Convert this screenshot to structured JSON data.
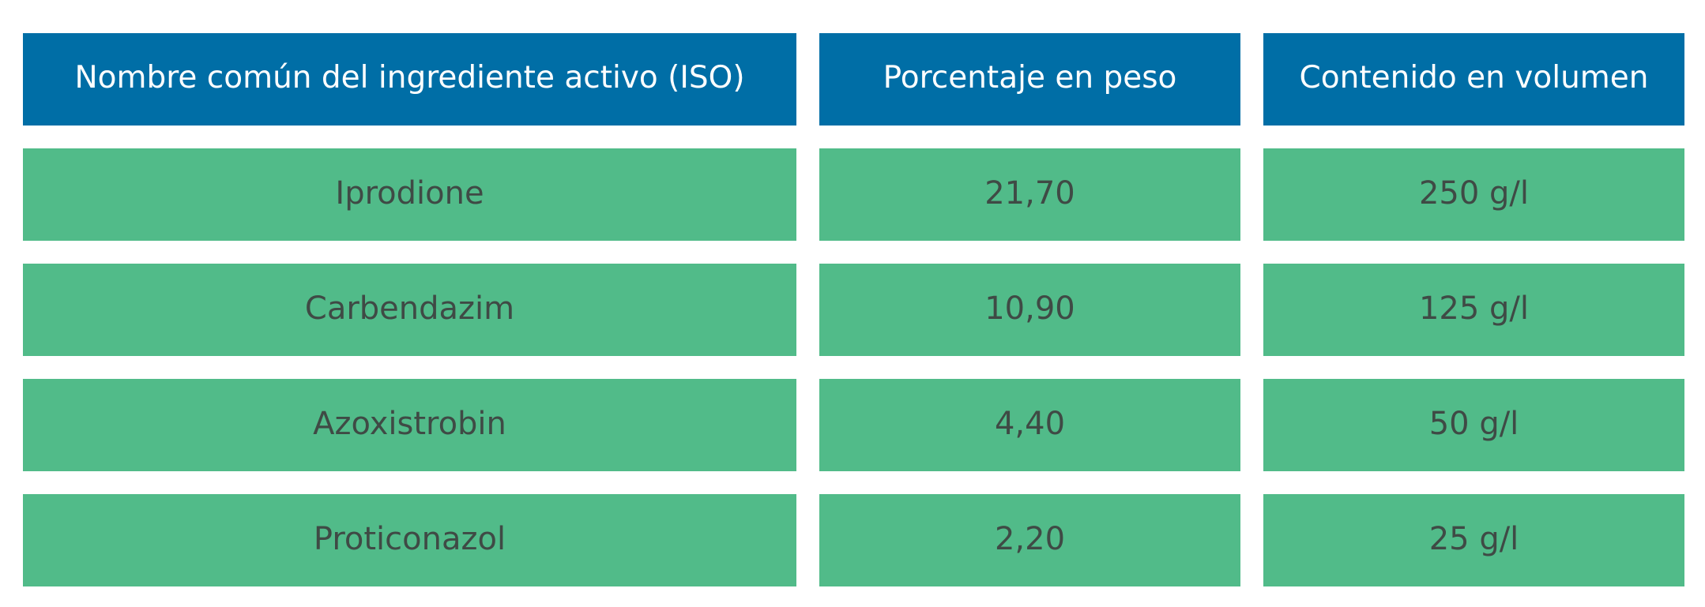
{
  "table": {
    "headers": [
      "Nombre común del ingrediente activo (ISO)",
      "Porcentaje en peso",
      "Contenido en volumen"
    ],
    "rows": [
      [
        "Iprodione",
        "21,70",
        "250 g/l"
      ],
      [
        "Carbendazim",
        "10,90",
        "125 g/l"
      ],
      [
        "Azoxistrobin",
        "4,40",
        "50 g/l"
      ],
      [
        "Proticonazol",
        "2,20",
        "25 g/l"
      ]
    ]
  },
  "colors": {
    "header_bg": "#006ea6",
    "header_text": "#ffffff",
    "row_bg": "#51bb89",
    "row_text": "#3f4a45"
  }
}
